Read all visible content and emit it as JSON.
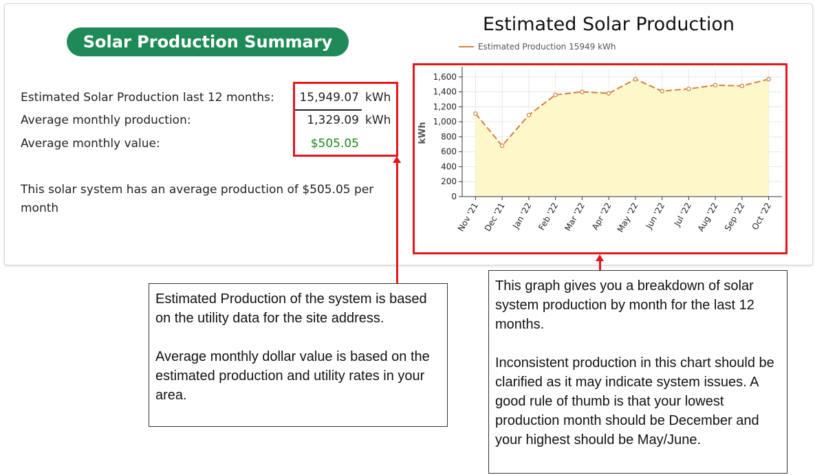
{
  "summary": {
    "title": "Solar Production Summary",
    "rows": [
      {
        "label": "Estimated Solar Production last 12 months:",
        "value": "15,949.07",
        "unit": "kWh"
      },
      {
        "label": "Average monthly production:",
        "value": "1,329.09",
        "unit": "kWh"
      },
      {
        "label": "Average monthly value:",
        "value": "$505.05",
        "unit": ""
      }
    ],
    "description": "This solar system has an average production of $505.05 per month"
  },
  "chart": {
    "title": "Estimated Solar Production",
    "legend_label": "Estimated Production 15949 kWh"
  },
  "chart_data": {
    "type": "area",
    "title": "Estimated Solar Production",
    "xlabel": "",
    "ylabel": "kWh",
    "categories": [
      "Nov '21",
      "Dec '21",
      "Jan '22",
      "Feb '22",
      "Mar '22",
      "Apr '22",
      "May '22",
      "Jun '22",
      "Jul '22",
      "Aug '22",
      "Sep '22",
      "Oct '22"
    ],
    "series": [
      {
        "name": "Estimated Production 15949 kWh",
        "values": [
          1110,
          680,
          1090,
          1360,
          1400,
          1380,
          1570,
          1410,
          1440,
          1490,
          1480,
          1570
        ]
      }
    ],
    "ylim": [
      0,
      1700
    ],
    "yticks": [
      0,
      200,
      400,
      600,
      800,
      1000,
      1200,
      1400,
      1600
    ],
    "ytick_labels": [
      "0",
      "200",
      "400",
      "600",
      "800",
      "1,000",
      "1,200",
      "1,400",
      "1,600"
    ],
    "grid": true,
    "legend_position": "top-left",
    "colors": {
      "line": "#d5813f",
      "fill": "#fdf7c9"
    }
  },
  "notes": {
    "left": {
      "paragraphs": [
        "Estimated Production of the system is based on the utility data for the site address.",
        "Average monthly dollar value is based on the estimated production and utility rates in your area."
      ]
    },
    "right": {
      "paragraphs": [
        "This graph gives you a breakdown of solar system production by month for the last 12 months.",
        "Inconsistent production in this chart should be clarified as it may indicate system issues. A good rule of thumb is that your lowest production month should be December and your highest should be May/June."
      ]
    }
  },
  "colors": {
    "accent_green": "#1e8a57",
    "value_green": "#1a8a1a",
    "highlight_red": "#e8141b"
  }
}
